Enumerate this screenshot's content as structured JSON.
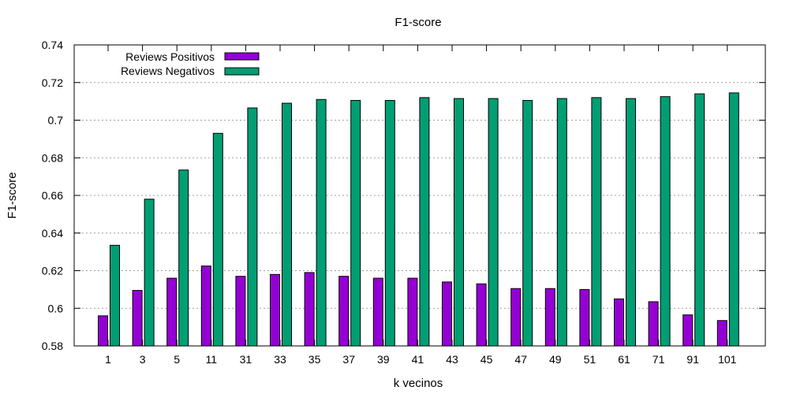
{
  "chart_data": {
    "type": "bar",
    "title": "F1-score",
    "xlabel": "k vecinos",
    "ylabel": "F1-score",
    "ylim": [
      0.58,
      0.74
    ],
    "yticks": [
      "0.58",
      "0.6",
      "0.62",
      "0.64",
      "0.66",
      "0.68",
      "0.7",
      "0.72",
      "0.74"
    ],
    "grid": true,
    "legend_position": "top-left",
    "categories": [
      "1",
      "3",
      "5",
      "11",
      "31",
      "33",
      "35",
      "37",
      "39",
      "41",
      "43",
      "45",
      "47",
      "49",
      "51",
      "61",
      "71",
      "91",
      "101"
    ],
    "series": [
      {
        "name": "Reviews Positivos",
        "color": "#9400d3",
        "values": [
          0.596,
          0.6095,
          0.616,
          0.6225,
          0.617,
          0.618,
          0.619,
          0.617,
          0.616,
          0.616,
          0.614,
          0.613,
          0.6105,
          0.6105,
          0.61,
          0.605,
          0.6035,
          0.5965,
          0.5935
        ]
      },
      {
        "name": "Reviews Negativos",
        "color": "#009e73",
        "values": [
          0.6335,
          0.658,
          0.6735,
          0.693,
          0.7065,
          0.709,
          0.711,
          0.7105,
          0.7105,
          0.712,
          0.7115,
          0.7115,
          0.7105,
          0.7115,
          0.712,
          0.7115,
          0.7125,
          0.714,
          0.7145
        ]
      }
    ]
  }
}
